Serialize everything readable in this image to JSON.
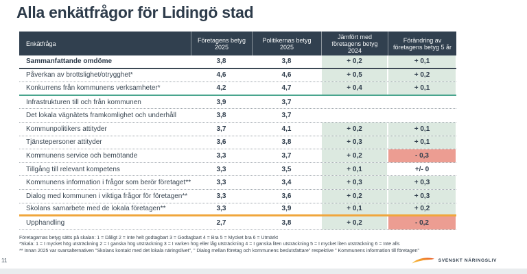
{
  "page": {
    "title": "Alla enkätfrågor för Lidingö stad",
    "page_number": "11",
    "logo_text": "SVENSKT NÄRINGSLIV"
  },
  "table": {
    "columns": [
      "Enkätfråga",
      "Företagens betyg 2025",
      "Politikernas betyg 2025",
      "Jämfört med företagens betyg 2024",
      "Förändring av företagens betyg 5 år"
    ],
    "rows": [
      {
        "label": "Sammanfattande omdöme",
        "bold": true,
        "company": "3,8",
        "politicians": "3,8",
        "vs2024": "+ 0,2",
        "change5y": "+ 0,1",
        "vs2024_bg": "green",
        "change5y_bg": "green",
        "separator": "dark"
      },
      {
        "label": "Påverkan av brottslighet/otrygghet*",
        "bold": false,
        "company": "4,6",
        "politicians": "4,6",
        "vs2024": "+ 0,5",
        "change5y": "+ 0,2",
        "vs2024_bg": "green",
        "change5y_bg": "green",
        "separator": "dashed"
      },
      {
        "label": "Konkurrens från kommunens verksamheter*",
        "bold": false,
        "company": "4,2",
        "politicians": "4,7",
        "vs2024": "+ 0,4",
        "change5y": "+ 0,1",
        "vs2024_bg": "green",
        "change5y_bg": "green",
        "separator": "teal"
      },
      {
        "label": "Infrastrukturen till och från kommunen",
        "bold": false,
        "company": "3,9",
        "politicians": "3,7",
        "vs2024": "",
        "change5y": "",
        "vs2024_bg": "none",
        "change5y_bg": "none",
        "separator": "dashed"
      },
      {
        "label": "Det lokala vägnätets framkomlighet och underhåll",
        "bold": false,
        "company": "3,8",
        "politicians": "3,7",
        "vs2024": "",
        "change5y": "",
        "vs2024_bg": "none",
        "change5y_bg": "none",
        "separator": "dashed"
      },
      {
        "label": "Kommunpolitikers attityder",
        "bold": false,
        "company": "3,7",
        "politicians": "4,1",
        "vs2024": "+ 0,2",
        "change5y": "+ 0,1",
        "vs2024_bg": "green",
        "change5y_bg": "green",
        "separator": "dashed"
      },
      {
        "label": "Tjänstepersoner attityder",
        "bold": false,
        "company": "3,6",
        "politicians": "3,8",
        "vs2024": "+ 0,3",
        "change5y": "+ 0,1",
        "vs2024_bg": "green",
        "change5y_bg": "green",
        "separator": "dashed"
      },
      {
        "label": "Kommunens service och bemötande",
        "bold": false,
        "company": "3,3",
        "politicians": "3,7",
        "vs2024": "+ 0,2",
        "change5y": "- 0,3",
        "vs2024_bg": "green",
        "change5y_bg": "red",
        "separator": "dashed"
      },
      {
        "label": "Tillgång till relevant kompetens",
        "bold": false,
        "company": "3,3",
        "politicians": "3,5",
        "vs2024": "+ 0,1",
        "change5y": "+/- 0",
        "vs2024_bg": "green",
        "change5y_bg": "white",
        "separator": "dashed"
      },
      {
        "label": "Kommunens information i frågor som berör företaget**",
        "bold": false,
        "company": "3,3",
        "politicians": "3,4",
        "vs2024": "+ 0,3",
        "change5y": "+ 0,3",
        "vs2024_bg": "green",
        "change5y_bg": "green",
        "separator": "dashed"
      },
      {
        "label": "Dialog med kommunen i viktiga frågor för företagen**",
        "bold": false,
        "company": "3,3",
        "politicians": "3,6",
        "vs2024": "+ 0,2",
        "change5y": "+ 0,3",
        "vs2024_bg": "green",
        "change5y_bg": "green",
        "separator": "dashed"
      },
      {
        "label": "Skolans samarbete med de lokala företagen**",
        "bold": false,
        "company": "3,3",
        "politicians": "3,9",
        "vs2024": "+ 0,1",
        "change5y": "+ 0,2",
        "vs2024_bg": "green",
        "change5y_bg": "green",
        "separator": "orange"
      },
      {
        "label": "Upphandling",
        "bold": false,
        "company": "2,7",
        "politicians": "3,8",
        "vs2024": "+ 0,2",
        "change5y": "- 0,2",
        "vs2024_bg": "green",
        "change5y_bg": "red",
        "separator": "dashed"
      }
    ]
  },
  "footnotes": [
    "Företagarnas betyg sätts på skalan: 1 = Dåligt 2 = Inte helt godtagbart 3 = Godtagbart 4 = Bra 5 = Mycket bra 6 = Utmärkt",
    "*Skala: 1 = I mycket hög utsträckning 2 = I ganska hög utsträckning 3 = I varken hög eller låg utsträckning 4 = I ganska liten utsträckning 5 = I mycket liten utsträckning 6 = Inte alls",
    "** Innan 2025 var svarsalternativen \"Skolans kontakt med det lokala näringslivet\", \" Dialog mellan företag och kommunens beslutsfattare\" respektive \" Kommunens information till företagen\""
  ],
  "colors": {
    "header_bg": "#31404f",
    "positive_cell": "#dce9e0",
    "negative_cell": "#ec9d92",
    "teal_line": "#49a58e",
    "orange_line": "#f0a63c",
    "navy_text": "#2e3c4b"
  }
}
